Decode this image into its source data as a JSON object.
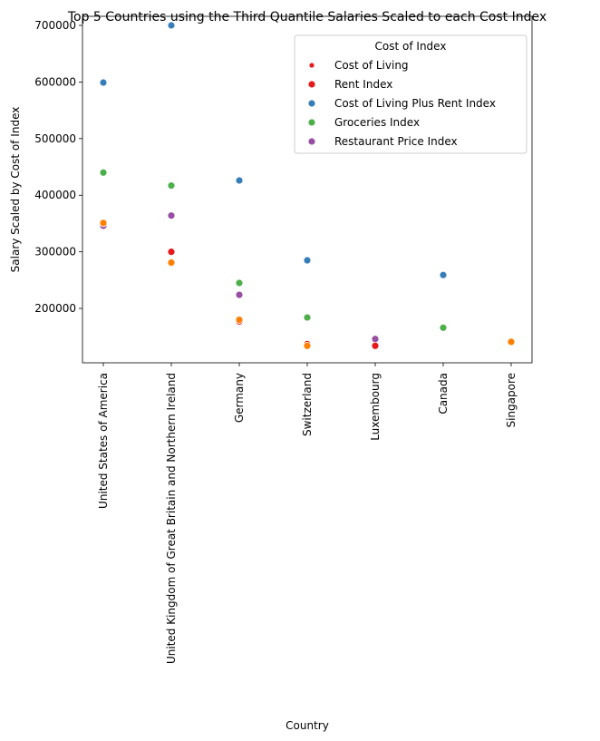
{
  "chart_data": {
    "type": "scatter",
    "title": "Top 5 Countries using the Third Quantile Salaries Scaled to each Cost Index",
    "xlabel": "Country",
    "ylabel": "Salary Scaled by Cost of Index",
    "categories": [
      "United States of America",
      "United Kingdom of Great Britain and Northern Ireland",
      "Germany",
      "Switzerland",
      "Luxembourg",
      "Canada",
      "Singapore"
    ],
    "yticks": [
      {
        "value": 200000,
        "label": "200000"
      },
      {
        "value": 300000,
        "label": "300000"
      },
      {
        "value": 400000,
        "label": "400000"
      },
      {
        "value": 500000,
        "label": "500000"
      },
      {
        "value": 600000,
        "label": "600000"
      },
      {
        "value": 700000,
        "label": "700000"
      }
    ],
    "ylim": [
      104000,
      716000
    ],
    "grid": false,
    "legend": {
      "title": "Cost of Index",
      "placement": "top-right",
      "entries": [
        {
          "label": "Cost of Living",
          "color": "#e41a1c"
        },
        {
          "label": "Rent Index",
          "color": "#e41a1c"
        },
        {
          "label": "Cost of Living Plus Rent Index",
          "color": "#377eb8"
        },
        {
          "label": "Groceries Index",
          "color": "#4daf4a"
        },
        {
          "label": "Restaurant Price Index",
          "color": "#984ea3"
        }
      ]
    },
    "points": [
      {
        "x": "United States of America",
        "y": 599000,
        "color": "#377eb8"
      },
      {
        "x": "United States of America",
        "y": 440000,
        "color": "#4daf4a"
      },
      {
        "x": "United States of America",
        "y": 346000,
        "color": "#984ea3"
      },
      {
        "x": "United States of America",
        "y": 351000,
        "color": "#ff7f00"
      },
      {
        "x": "United Kingdom of Great Britain and Northern Ireland",
        "y": 700000,
        "color": "#377eb8"
      },
      {
        "x": "United Kingdom of Great Britain and Northern Ireland",
        "y": 417000,
        "color": "#4daf4a"
      },
      {
        "x": "United Kingdom of Great Britain and Northern Ireland",
        "y": 364000,
        "color": "#984ea3"
      },
      {
        "x": "United Kingdom of Great Britain and Northern Ireland",
        "y": 300000,
        "color": "#e41a1c"
      },
      {
        "x": "United Kingdom of Great Britain and Northern Ireland",
        "y": 281000,
        "color": "#ff7f00"
      },
      {
        "x": "Germany",
        "y": 426000,
        "color": "#377eb8"
      },
      {
        "x": "Germany",
        "y": 245000,
        "color": "#4daf4a"
      },
      {
        "x": "Germany",
        "y": 224000,
        "color": "#984ea3"
      },
      {
        "x": "Germany",
        "y": 177000,
        "color": "#e41a1c"
      },
      {
        "x": "Germany",
        "y": 180000,
        "color": "#ff7f00"
      },
      {
        "x": "Switzerland",
        "y": 285000,
        "color": "#377eb8"
      },
      {
        "x": "Switzerland",
        "y": 184000,
        "color": "#4daf4a"
      },
      {
        "x": "Switzerland",
        "y": 137000,
        "color": "#e41a1c"
      },
      {
        "x": "Switzerland",
        "y": 134000,
        "color": "#ff7f00"
      },
      {
        "x": "Luxembourg",
        "y": 146000,
        "color": "#984ea3"
      },
      {
        "x": "Luxembourg",
        "y": 134000,
        "color": "#e41a1c"
      },
      {
        "x": "Canada",
        "y": 259000,
        "color": "#377eb8"
      },
      {
        "x": "Canada",
        "y": 166000,
        "color": "#4daf4a"
      },
      {
        "x": "Singapore",
        "y": 141000,
        "color": "#ff7f00"
      }
    ]
  }
}
